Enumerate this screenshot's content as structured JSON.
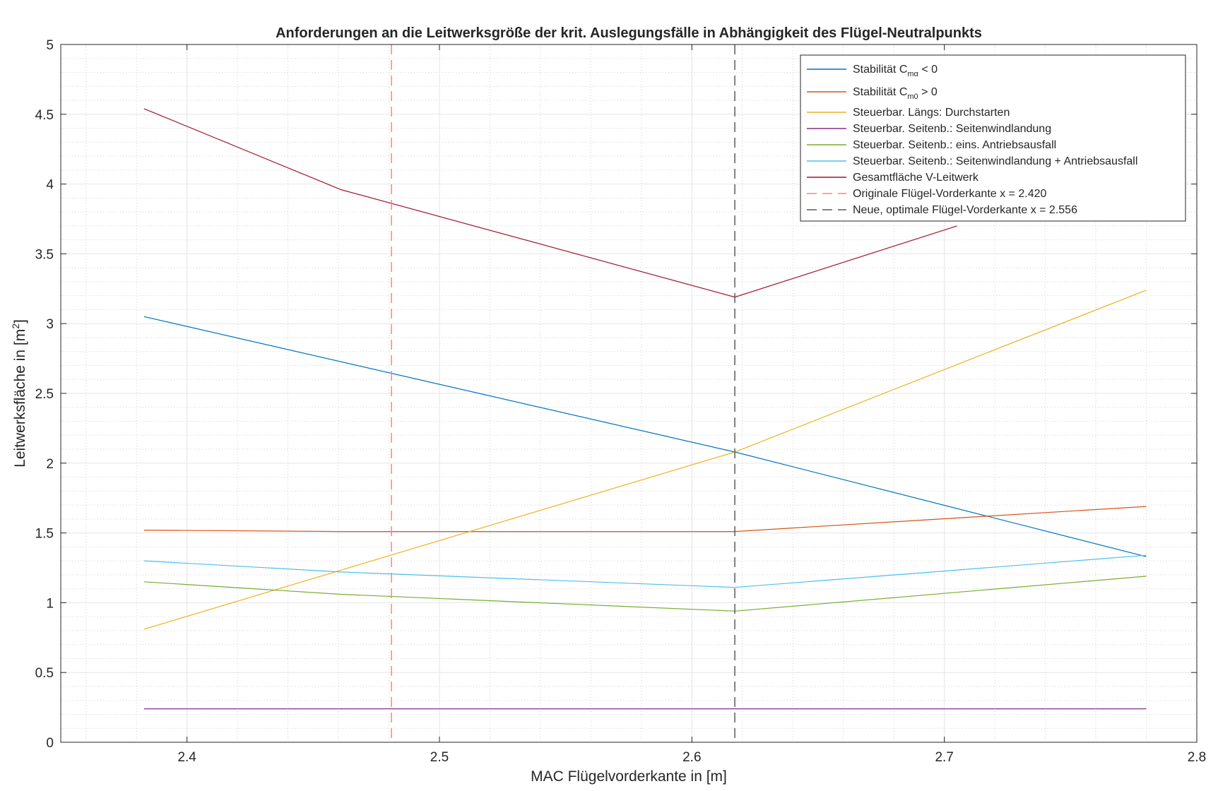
{
  "chart_data": {
    "type": "line",
    "title": "Anforderungen an die Leitwerksgröße der krit. Auslegungsfälle in Abhängigkeit des Flügel-Neutralpunkts",
    "xlabel": "MAC Flügelvorderkante in [m]",
    "ylabel": {
      "text": "Leitwerksfläche in [m",
      "sup": "2",
      "end": "]"
    },
    "xlim": [
      2.35,
      2.8
    ],
    "ylim": [
      0,
      5
    ],
    "xticks": [
      2.4,
      2.5,
      2.6,
      2.7,
      2.8
    ],
    "xtick_labels": [
      "2.4",
      "2.5",
      "2.6",
      "2.7",
      "2.8"
    ],
    "yticks": [
      0,
      0.5,
      1,
      1.5,
      2,
      2.5,
      3,
      3.5,
      4,
      4.5,
      5
    ],
    "ytick_labels": [
      "0",
      "0.5",
      "1",
      "1.5",
      "2",
      "2.5",
      "3",
      "3.5",
      "4",
      "4.5",
      "5"
    ],
    "grid": "major and minor",
    "legend_position": "top-right",
    "series": [
      {
        "name": "Stabilität C",
        "sub": "mα",
        "suffix": " < 0",
        "color": "#0072BD",
        "x": [
          2.383,
          2.617,
          2.78
        ],
        "y": [
          3.05,
          2.08,
          1.33
        ]
      },
      {
        "name": "Stabilität C",
        "sub": "m0",
        "suffix": " > 0",
        "color": "#D95319",
        "x": [
          2.383,
          2.461,
          2.617,
          2.78
        ],
        "y": [
          1.52,
          1.51,
          1.51,
          1.69
        ]
      },
      {
        "name": "Steuerbar. Längs: Durchstarten",
        "color": "#EDB120",
        "x": [
          2.383,
          2.617,
          2.78
        ],
        "y": [
          0.81,
          2.08,
          3.24
        ]
      },
      {
        "name": "Steuerbar. Seitenb.: Seitenwindlandung",
        "color": "#7E2F8E",
        "x": [
          2.383,
          2.78
        ],
        "y": [
          0.24,
          0.24
        ]
      },
      {
        "name": "Steuerbar. Seitenb.: eins. Antriebsausfall",
        "color": "#77AC30",
        "x": [
          2.383,
          2.461,
          2.617,
          2.78
        ],
        "y": [
          1.15,
          1.06,
          0.94,
          1.19
        ]
      },
      {
        "name": "Steuerbar. Seitenb.: Seitenwindlandung + Antriebsausfall",
        "color": "#4DBEEE",
        "x": [
          2.383,
          2.461,
          2.617,
          2.78
        ],
        "y": [
          1.3,
          1.22,
          1.11,
          1.34
        ]
      },
      {
        "name": "Gesamtfläche V-Leitwerk",
        "color": "#A2142F",
        "x": [
          2.383,
          2.461,
          2.617,
          2.705
        ],
        "y": [
          4.54,
          3.96,
          3.19,
          3.7
        ]
      }
    ],
    "vlines": [
      {
        "name": "Originale Flügel-Vorderkante x =  2.420",
        "x": 2.481,
        "color": "#FF8080",
        "dash": "long"
      },
      {
        "name": "Neue, optimale Flügel-Vorderkante x =  2.556",
        "x": 2.617,
        "color": "#5a5a5a",
        "dash": "long"
      }
    ]
  }
}
